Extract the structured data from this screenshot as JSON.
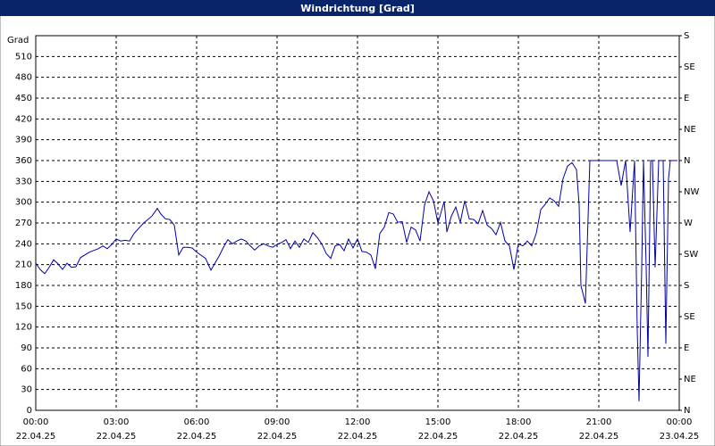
{
  "chart_data": {
    "type": "line",
    "title": "Windrichtung [Grad]",
    "y_label": "Grad",
    "xlim": [
      0,
      1440
    ],
    "xticks": [
      {
        "value": 0,
        "label": "00:00 22.04.25"
      },
      {
        "value": 180,
        "label": "03:00 22.04.25"
      },
      {
        "value": 360,
        "label": "06:00 22.04.25"
      },
      {
        "value": 540,
        "label": "09:00 22.04.25"
      },
      {
        "value": 720,
        "label": "12:00 22.04.25"
      },
      {
        "value": 900,
        "label": "15:00 22.04.25"
      },
      {
        "value": 1080,
        "label": "18:00 22.04.25"
      },
      {
        "value": 1260,
        "label": "21:00 22.04.25"
      },
      {
        "value": 1440,
        "label": "00:00 23.04.25"
      }
    ],
    "ylim": [
      0,
      540
    ],
    "yticks": [
      0,
      30,
      60,
      90,
      120,
      150,
      180,
      210,
      240,
      270,
      300,
      330,
      360,
      390,
      420,
      450,
      480,
      510
    ],
    "y2lim": [
      0,
      540
    ],
    "y2ticks": [
      {
        "value": 0,
        "label": "N"
      },
      {
        "value": 45,
        "label": "NE"
      },
      {
        "value": 90,
        "label": "E"
      },
      {
        "value": 135,
        "label": "SE"
      },
      {
        "value": 180,
        "label": "S"
      },
      {
        "value": 225,
        "label": "SW"
      },
      {
        "value": 270,
        "label": "W"
      },
      {
        "value": 315,
        "label": "NW"
      },
      {
        "value": 360,
        "label": "N"
      },
      {
        "value": 405,
        "label": "NE"
      },
      {
        "value": 450,
        "label": "E"
      },
      {
        "value": 495,
        "label": "SE"
      },
      {
        "value": 540,
        "label": "S"
      }
    ],
    "grid": true,
    "x": [
      0,
      10,
      20,
      30,
      40,
      50,
      60,
      70,
      80,
      90,
      100,
      120,
      140,
      150,
      160,
      170,
      180,
      190,
      200,
      210,
      220,
      240,
      260,
      272,
      280,
      290,
      300,
      310,
      320,
      330,
      340,
      350,
      360,
      380,
      392,
      400,
      410,
      420,
      430,
      440,
      450,
      460,
      470,
      480,
      490,
      500,
      510,
      520,
      530,
      540,
      550,
      560,
      570,
      580,
      590,
      600,
      610,
      620,
      630,
      640,
      650,
      660,
      670,
      680,
      690,
      700,
      710,
      720,
      730,
      740,
      750,
      760,
      770,
      780,
      790,
      800,
      810,
      820,
      830,
      840,
      850,
      860,
      870,
      880,
      890,
      900,
      906,
      914,
      920,
      930,
      940,
      950,
      960,
      970,
      980,
      990,
      1000,
      1010,
      1020,
      1030,
      1040,
      1050,
      1060,
      1070,
      1080,
      1090,
      1100,
      1110,
      1120,
      1130,
      1140,
      1150,
      1160,
      1170,
      1180,
      1190,
      1200,
      1210,
      1216,
      1220,
      1230,
      1240,
      1250,
      1260,
      1280,
      1300,
      1310,
      1320,
      1330,
      1340,
      1346,
      1350,
      1356,
      1360,
      1366,
      1370,
      1376,
      1380,
      1386,
      1394,
      1404,
      1410,
      1416,
      1420,
      1430,
      1436
    ],
    "series": [
      {
        "color": "#0000a8",
        "values": [
          212,
          203,
          197,
          206,
          217,
          211,
          203,
          212,
          206,
          207,
          220,
          228,
          233,
          237,
          233,
          239,
          247,
          244,
          245,
          244,
          255,
          269,
          280,
          291,
          283,
          276,
          275,
          267,
          224,
          235,
          235,
          234,
          228,
          219,
          202,
          211,
          222,
          235,
          246,
          240,
          244,
          247,
          244,
          237,
          231,
          237,
          240,
          237,
          235,
          239,
          242,
          246,
          233,
          244,
          235,
          247,
          242,
          256,
          249,
          240,
          226,
          219,
          237,
          239,
          230,
          247,
          234,
          247,
          229,
          228,
          224,
          204,
          255,
          264,
          285,
          283,
          271,
          272,
          242,
          264,
          260,
          244,
          296,
          315,
          302,
          270,
          283,
          301,
          257,
          280,
          293,
          271,
          302,
          276,
          275,
          269,
          288,
          267,
          262,
          253,
          271,
          244,
          237,
          203,
          240,
          237,
          244,
          237,
          255,
          289,
          297,
          306,
          302,
          294,
          334,
          352,
          357,
          347,
          296,
          180,
          154,
          360,
          360,
          360,
          360,
          360,
          324,
          360,
          257,
          360,
          116,
          13,
          206,
          360,
          206,
          77,
          360,
          360,
          206,
          360,
          360,
          96,
          334,
          360,
          360,
          360
        ]
      }
    ]
  }
}
